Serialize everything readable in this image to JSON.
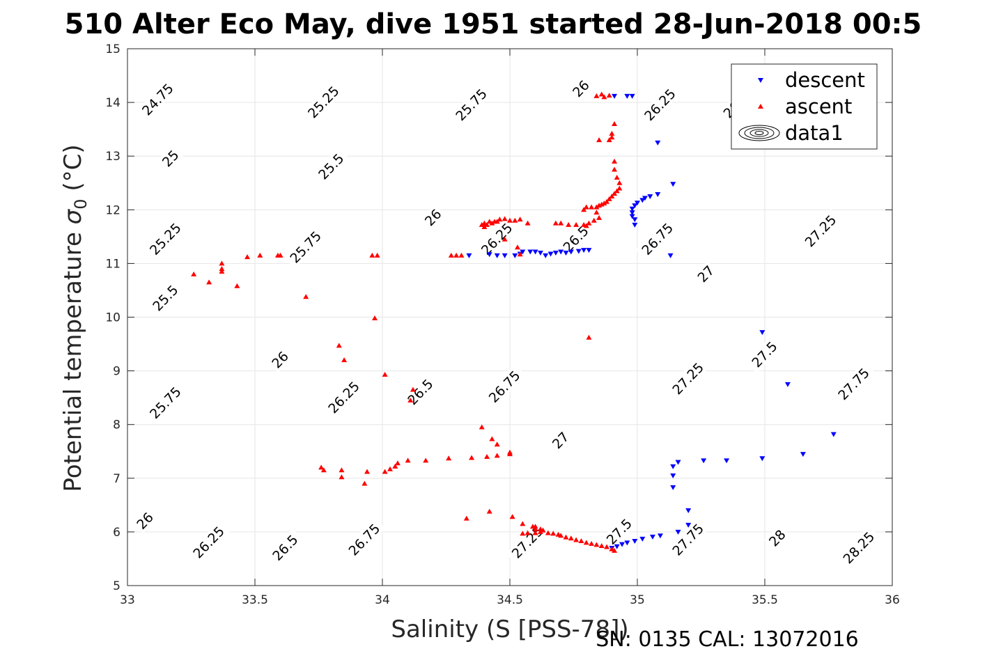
{
  "figure": {
    "title": "510 Alter Eco May, dive 1951 started 28-Jun-2018 00:5",
    "footer": "SN: 0135  CAL: 13072016"
  },
  "chart_data": {
    "type": "scatter",
    "title": "510 Alter Eco May, dive 1951 started 28-Jun-2018 00:5",
    "xlabel": "Salinity (S [PSS-78])",
    "ylabel_main": "Potential temperature ",
    "ylabel_symbol": "σ",
    "ylabel_subscript": "0",
    "ylabel_unit": " (°C)",
    "xlim": [
      33,
      36
    ],
    "ylim": [
      5,
      15
    ],
    "x_ticks": [
      33,
      33.5,
      34,
      34.5,
      35,
      35.5,
      36
    ],
    "x_tick_labels": [
      "33",
      "33.5",
      "34",
      "34.5",
      "35",
      "35.5",
      "36"
    ],
    "y_ticks": [
      5,
      6,
      7,
      8,
      9,
      10,
      11,
      12,
      13,
      14,
      15
    ],
    "y_tick_labels": [
      "5",
      "6",
      "7",
      "8",
      "9",
      "10",
      "11",
      "12",
      "13",
      "14",
      "15"
    ],
    "grid": true,
    "legend_placement": "top-right",
    "legend": [
      "descent",
      "ascent",
      "data1"
    ],
    "contours": [
      {
        "level": 24.75,
        "label": "24.75",
        "label_at": [
          [
            33.12,
            14.05
          ]
        ]
      },
      {
        "level": 25,
        "label": "25",
        "label_at": [
          [
            33.17,
            12.95
          ]
        ]
      },
      {
        "level": 25.25,
        "label": "25.25",
        "label_at": [
          [
            33.15,
            11.45
          ],
          [
            33.77,
            14.0
          ]
        ]
      },
      {
        "level": 25.5,
        "label": "25.5",
        "label_at": [
          [
            33.15,
            10.35
          ],
          [
            33.8,
            12.8
          ]
        ]
      },
      {
        "level": 25.75,
        "label": "25.75",
        "label_at": [
          [
            33.15,
            8.4
          ],
          [
            33.7,
            11.3
          ],
          [
            34.35,
            13.95
          ]
        ]
      },
      {
        "level": 26,
        "label": "26",
        "label_at": [
          [
            33.07,
            6.2
          ],
          [
            33.6,
            9.2
          ],
          [
            34.2,
            11.85
          ],
          [
            34.78,
            14.25
          ]
        ]
      },
      {
        "level": 26.25,
        "label": "26.25",
        "label_at": [
          [
            33.32,
            5.8
          ],
          [
            33.85,
            8.5
          ],
          [
            34.45,
            11.45
          ],
          [
            35.09,
            13.95
          ]
        ]
      },
      {
        "level": 26.5,
        "label": "26.5",
        "label_at": [
          [
            33.62,
            5.7
          ],
          [
            34.15,
            8.6
          ],
          [
            34.76,
            11.45
          ]
        ]
      },
      {
        "level": 26.75,
        "label": "26.75",
        "label_at": [
          [
            33.93,
            5.85
          ],
          [
            34.48,
            8.7
          ],
          [
            35.08,
            11.45
          ],
          [
            35.4,
            14.0
          ]
        ]
      },
      {
        "level": 27,
        "label": "27",
        "label_at": [
          [
            34.7,
            7.7
          ],
          [
            35.27,
            10.8
          ]
        ]
      },
      {
        "level": 27.25,
        "label": "27.25",
        "label_at": [
          [
            34.57,
            5.8
          ],
          [
            35.2,
            8.85
          ],
          [
            35.72,
            11.6
          ]
        ]
      },
      {
        "level": 27.5,
        "label": "27.5",
        "label_at": [
          [
            34.93,
            6.0
          ],
          [
            35.5,
            9.3
          ]
        ]
      },
      {
        "level": 27.75,
        "label": "27.75",
        "label_at": [
          [
            35.2,
            5.85
          ],
          [
            35.85,
            8.75
          ]
        ]
      },
      {
        "level": 28,
        "label": "28",
        "label_at": [
          [
            35.55,
            5.88
          ]
        ]
      },
      {
        "level": 28.25,
        "label": "28.25",
        "label_at": [
          [
            35.87,
            5.7
          ]
        ]
      }
    ],
    "series": [
      {
        "name": "descent",
        "marker": "triangle-down",
        "color": "#0000ff",
        "points": [
          [
            34.91,
            14.12
          ],
          [
            34.96,
            14.12
          ],
          [
            34.98,
            14.12
          ],
          [
            35.08,
            13.25
          ],
          [
            35.14,
            12.48
          ],
          [
            35.08,
            12.29
          ],
          [
            35.05,
            12.25
          ],
          [
            35.03,
            12.22
          ],
          [
            35.02,
            12.18
          ],
          [
            35.0,
            12.13
          ],
          [
            34.99,
            12.08
          ],
          [
            34.98,
            12.02
          ],
          [
            34.98,
            11.95
          ],
          [
            34.98,
            11.88
          ],
          [
            34.99,
            11.82
          ],
          [
            34.99,
            11.72
          ],
          [
            35.13,
            11.15
          ],
          [
            34.34,
            11.15
          ],
          [
            34.42,
            11.17
          ],
          [
            34.45,
            11.15
          ],
          [
            34.48,
            11.15
          ],
          [
            34.52,
            11.15
          ],
          [
            34.54,
            11.18
          ],
          [
            34.55,
            11.22
          ],
          [
            34.58,
            11.22
          ],
          [
            34.6,
            11.22
          ],
          [
            34.62,
            11.2
          ],
          [
            34.64,
            11.15
          ],
          [
            34.66,
            11.18
          ],
          [
            34.68,
            11.2
          ],
          [
            34.7,
            11.22
          ],
          [
            34.72,
            11.2
          ],
          [
            34.74,
            11.22
          ],
          [
            34.77,
            11.23
          ],
          [
            34.79,
            11.25
          ],
          [
            34.81,
            11.25
          ],
          [
            35.49,
            9.72
          ],
          [
            35.59,
            8.75
          ],
          [
            35.77,
            7.82
          ],
          [
            35.65,
            7.45
          ],
          [
            35.49,
            7.37
          ],
          [
            35.35,
            7.33
          ],
          [
            35.26,
            7.33
          ],
          [
            35.16,
            7.3
          ],
          [
            35.14,
            7.22
          ],
          [
            35.14,
            7.05
          ],
          [
            35.14,
            6.83
          ],
          [
            35.2,
            6.4
          ],
          [
            35.2,
            6.13
          ],
          [
            35.16,
            6.0
          ],
          [
            35.09,
            5.93
          ],
          [
            35.06,
            5.91
          ],
          [
            35.02,
            5.87
          ],
          [
            34.99,
            5.83
          ],
          [
            34.96,
            5.8
          ],
          [
            34.94,
            5.77
          ],
          [
            34.92,
            5.73
          ],
          [
            34.9,
            5.7
          ]
        ]
      },
      {
        "name": "ascent",
        "marker": "triangle-up",
        "color": "#ff0000",
        "points": [
          [
            34.84,
            14.12
          ],
          [
            34.86,
            14.15
          ],
          [
            34.87,
            14.1
          ],
          [
            34.89,
            14.13
          ],
          [
            34.91,
            13.6
          ],
          [
            34.9,
            13.42
          ],
          [
            34.9,
            13.35
          ],
          [
            34.85,
            13.3
          ],
          [
            34.89,
            13.3
          ],
          [
            34.91,
            12.9
          ],
          [
            34.91,
            12.75
          ],
          [
            34.92,
            12.6
          ],
          [
            34.93,
            12.5
          ],
          [
            34.93,
            12.4
          ],
          [
            34.92,
            12.35
          ],
          [
            34.91,
            12.3
          ],
          [
            34.9,
            12.25
          ],
          [
            34.89,
            12.2
          ],
          [
            34.88,
            12.15
          ],
          [
            34.87,
            12.12
          ],
          [
            34.86,
            12.1
          ],
          [
            34.85,
            12.08
          ],
          [
            34.84,
            12.05
          ],
          [
            34.82,
            12.05
          ],
          [
            34.8,
            12.05
          ],
          [
            34.79,
            12.0
          ],
          [
            34.84,
            11.95
          ],
          [
            34.85,
            11.85
          ],
          [
            34.83,
            11.8
          ],
          [
            34.81,
            11.75
          ],
          [
            34.8,
            11.7
          ],
          [
            34.79,
            11.72
          ],
          [
            34.76,
            11.72
          ],
          [
            34.73,
            11.72
          ],
          [
            34.7,
            11.75
          ],
          [
            34.68,
            11.75
          ],
          [
            34.57,
            11.75
          ],
          [
            34.54,
            11.82
          ],
          [
            34.52,
            11.8
          ],
          [
            34.5,
            11.8
          ],
          [
            34.48,
            11.83
          ],
          [
            34.46,
            11.82
          ],
          [
            34.45,
            11.78
          ],
          [
            34.44,
            11.78
          ],
          [
            34.43,
            11.75
          ],
          [
            34.42,
            11.78
          ],
          [
            34.41,
            11.72
          ],
          [
            34.4,
            11.75
          ],
          [
            34.39,
            11.72
          ],
          [
            34.4,
            11.68
          ],
          [
            34.48,
            11.45
          ],
          [
            34.53,
            11.3
          ],
          [
            34.54,
            11.17
          ],
          [
            34.27,
            11.15
          ],
          [
            34.29,
            11.15
          ],
          [
            34.31,
            11.15
          ],
          [
            33.96,
            11.15
          ],
          [
            33.98,
            11.15
          ],
          [
            33.59,
            11.15
          ],
          [
            33.6,
            11.15
          ],
          [
            33.52,
            11.15
          ],
          [
            33.47,
            11.12
          ],
          [
            33.37,
            11.0
          ],
          [
            33.37,
            10.9
          ],
          [
            33.37,
            10.85
          ],
          [
            33.26,
            10.8
          ],
          [
            33.32,
            10.65
          ],
          [
            33.43,
            10.58
          ],
          [
            33.7,
            10.38
          ],
          [
            33.97,
            9.98
          ],
          [
            34.81,
            9.62
          ],
          [
            33.83,
            9.47
          ],
          [
            33.85,
            9.2
          ],
          [
            34.01,
            8.93
          ],
          [
            34.12,
            8.65
          ],
          [
            34.11,
            8.45
          ],
          [
            34.39,
            7.95
          ],
          [
            34.43,
            7.73
          ],
          [
            34.45,
            7.63
          ],
          [
            34.5,
            7.48
          ],
          [
            34.5,
            7.45
          ],
          [
            34.45,
            7.42
          ],
          [
            34.41,
            7.4
          ],
          [
            34.35,
            7.38
          ],
          [
            34.26,
            7.37
          ],
          [
            34.17,
            7.33
          ],
          [
            34.1,
            7.33
          ],
          [
            34.06,
            7.28
          ],
          [
            34.05,
            7.22
          ],
          [
            34.03,
            7.17
          ],
          [
            34.01,
            7.12
          ],
          [
            33.94,
            7.12
          ],
          [
            33.84,
            7.15
          ],
          [
            33.76,
            7.2
          ],
          [
            33.77,
            7.15
          ],
          [
            33.84,
            7.02
          ],
          [
            33.93,
            6.9
          ],
          [
            34.42,
            6.38
          ],
          [
            34.33,
            6.25
          ],
          [
            34.51,
            6.28
          ],
          [
            34.55,
            6.15
          ],
          [
            34.59,
            6.1
          ],
          [
            34.6,
            6.1
          ],
          [
            34.6,
            6.05
          ],
          [
            34.62,
            6.05
          ],
          [
            34.63,
            6.03
          ],
          [
            34.62,
            6.0
          ],
          [
            34.6,
            5.98
          ],
          [
            34.57,
            5.98
          ],
          [
            34.55,
            5.97
          ],
          [
            34.65,
            5.98
          ],
          [
            34.67,
            5.97
          ],
          [
            34.69,
            5.95
          ],
          [
            34.7,
            5.93
          ],
          [
            34.72,
            5.9
          ],
          [
            34.74,
            5.88
          ],
          [
            34.76,
            5.85
          ],
          [
            34.78,
            5.83
          ],
          [
            34.8,
            5.8
          ],
          [
            34.82,
            5.78
          ],
          [
            34.84,
            5.76
          ],
          [
            34.86,
            5.74
          ],
          [
            34.88,
            5.72
          ],
          [
            34.9,
            5.68
          ],
          [
            34.91,
            5.65
          ]
        ]
      }
    ]
  }
}
